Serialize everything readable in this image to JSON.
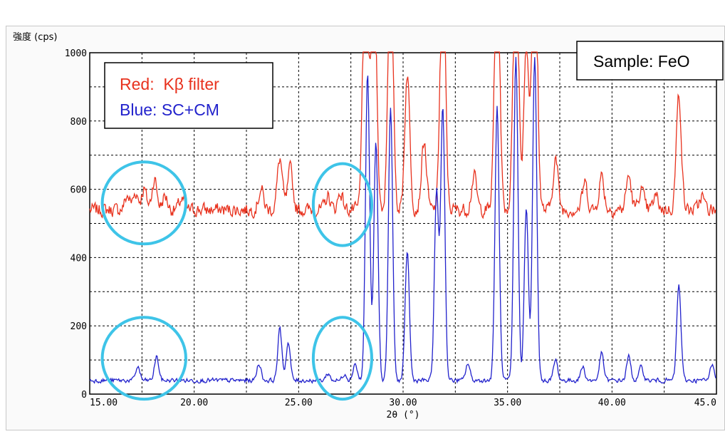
{
  "chart_data": {
    "type": "line",
    "ylabel": "強度 (cps)",
    "xlabel": "2θ (°)",
    "xlim": [
      15,
      45
    ],
    "ylim": [
      0,
      1000
    ],
    "x_ticks": [
      "15.00",
      "20.00",
      "25.00",
      "30.00",
      "35.00",
      "40.00",
      "45.0"
    ],
    "y_ticks": [
      "0",
      "200",
      "400",
      "600",
      "800",
      "1000"
    ],
    "grid": true,
    "legend": {
      "position": "top-left",
      "entries": [
        {
          "label": "Red:  Kβ filter",
          "color": "#e8321e"
        },
        {
          "label": "Blue: SC+CM",
          "color": "#2222cc"
        }
      ]
    },
    "annotation": "Sample: FeO",
    "highlight_color": "#3ec4e8",
    "highlights": [
      {
        "x": 17.6,
        "y": 560,
        "rx": 2.0,
        "ry": 120
      },
      {
        "x": 27.1,
        "y": 555,
        "rx": 1.4,
        "ry": 120
      },
      {
        "x": 17.6,
        "y": 105,
        "rx": 2.0,
        "ry": 120
      },
      {
        "x": 27.1,
        "y": 105,
        "rx": 1.4,
        "ry": 120
      }
    ],
    "series": [
      {
        "name": "Kβ filter",
        "color": "#e8321e",
        "baseline": 540,
        "peaks": [
          [
            16.8,
            40,
            0.12
          ],
          [
            17.2,
            50,
            0.12
          ],
          [
            17.6,
            60,
            0.12
          ],
          [
            18.1,
            90,
            0.12
          ],
          [
            18.6,
            40,
            0.12
          ],
          [
            19.4,
            30,
            0.12
          ],
          [
            23.2,
            60,
            0.12
          ],
          [
            24.1,
            150,
            0.12
          ],
          [
            24.6,
            120,
            0.12
          ],
          [
            26.4,
            40,
            0.12
          ],
          [
            27.0,
            50,
            0.12
          ],
          [
            28.2,
            900,
            0.12
          ],
          [
            28.6,
            800,
            0.12
          ],
          [
            29.4,
            800,
            0.12
          ],
          [
            30.2,
            400,
            0.12
          ],
          [
            31.0,
            200,
            0.12
          ],
          [
            31.9,
            800,
            0.12
          ],
          [
            33.4,
            100,
            0.12
          ],
          [
            34.5,
            800,
            0.12
          ],
          [
            35.4,
            900,
            0.12
          ],
          [
            35.9,
            500,
            0.12
          ],
          [
            36.3,
            900,
            0.12
          ],
          [
            37.3,
            150,
            0.12
          ],
          [
            38.7,
            80,
            0.12
          ],
          [
            39.5,
            100,
            0.12
          ],
          [
            40.8,
            100,
            0.12
          ],
          [
            41.4,
            60,
            0.12
          ],
          [
            42.1,
            40,
            0.12
          ],
          [
            43.2,
            340,
            0.12
          ],
          [
            44.3,
            40,
            0.12
          ]
        ]
      },
      {
        "name": "SC+CM",
        "color": "#2222cc",
        "baseline": 40,
        "peaks": [
          [
            17.3,
            40,
            0.1
          ],
          [
            18.2,
            70,
            0.1
          ],
          [
            23.1,
            50,
            0.1
          ],
          [
            24.1,
            150,
            0.1
          ],
          [
            24.5,
            110,
            0.1
          ],
          [
            26.4,
            20,
            0.1
          ],
          [
            27.2,
            20,
            0.1
          ],
          [
            27.7,
            50,
            0.1
          ],
          [
            28.3,
            900,
            0.1
          ],
          [
            28.7,
            700,
            0.1
          ],
          [
            29.4,
            800,
            0.1
          ],
          [
            30.2,
            380,
            0.1
          ],
          [
            31.6,
            550,
            0.1
          ],
          [
            31.9,
            800,
            0.1
          ],
          [
            33.1,
            50,
            0.1
          ],
          [
            34.5,
            800,
            0.1
          ],
          [
            35.4,
            950,
            0.1
          ],
          [
            35.9,
            500,
            0.1
          ],
          [
            36.3,
            950,
            0.1
          ],
          [
            37.3,
            60,
            0.1
          ],
          [
            38.6,
            40,
            0.1
          ],
          [
            39.5,
            80,
            0.1
          ],
          [
            40.8,
            70,
            0.1
          ],
          [
            41.4,
            40,
            0.1
          ],
          [
            43.2,
            280,
            0.1
          ],
          [
            44.8,
            50,
            0.1
          ]
        ]
      }
    ]
  }
}
